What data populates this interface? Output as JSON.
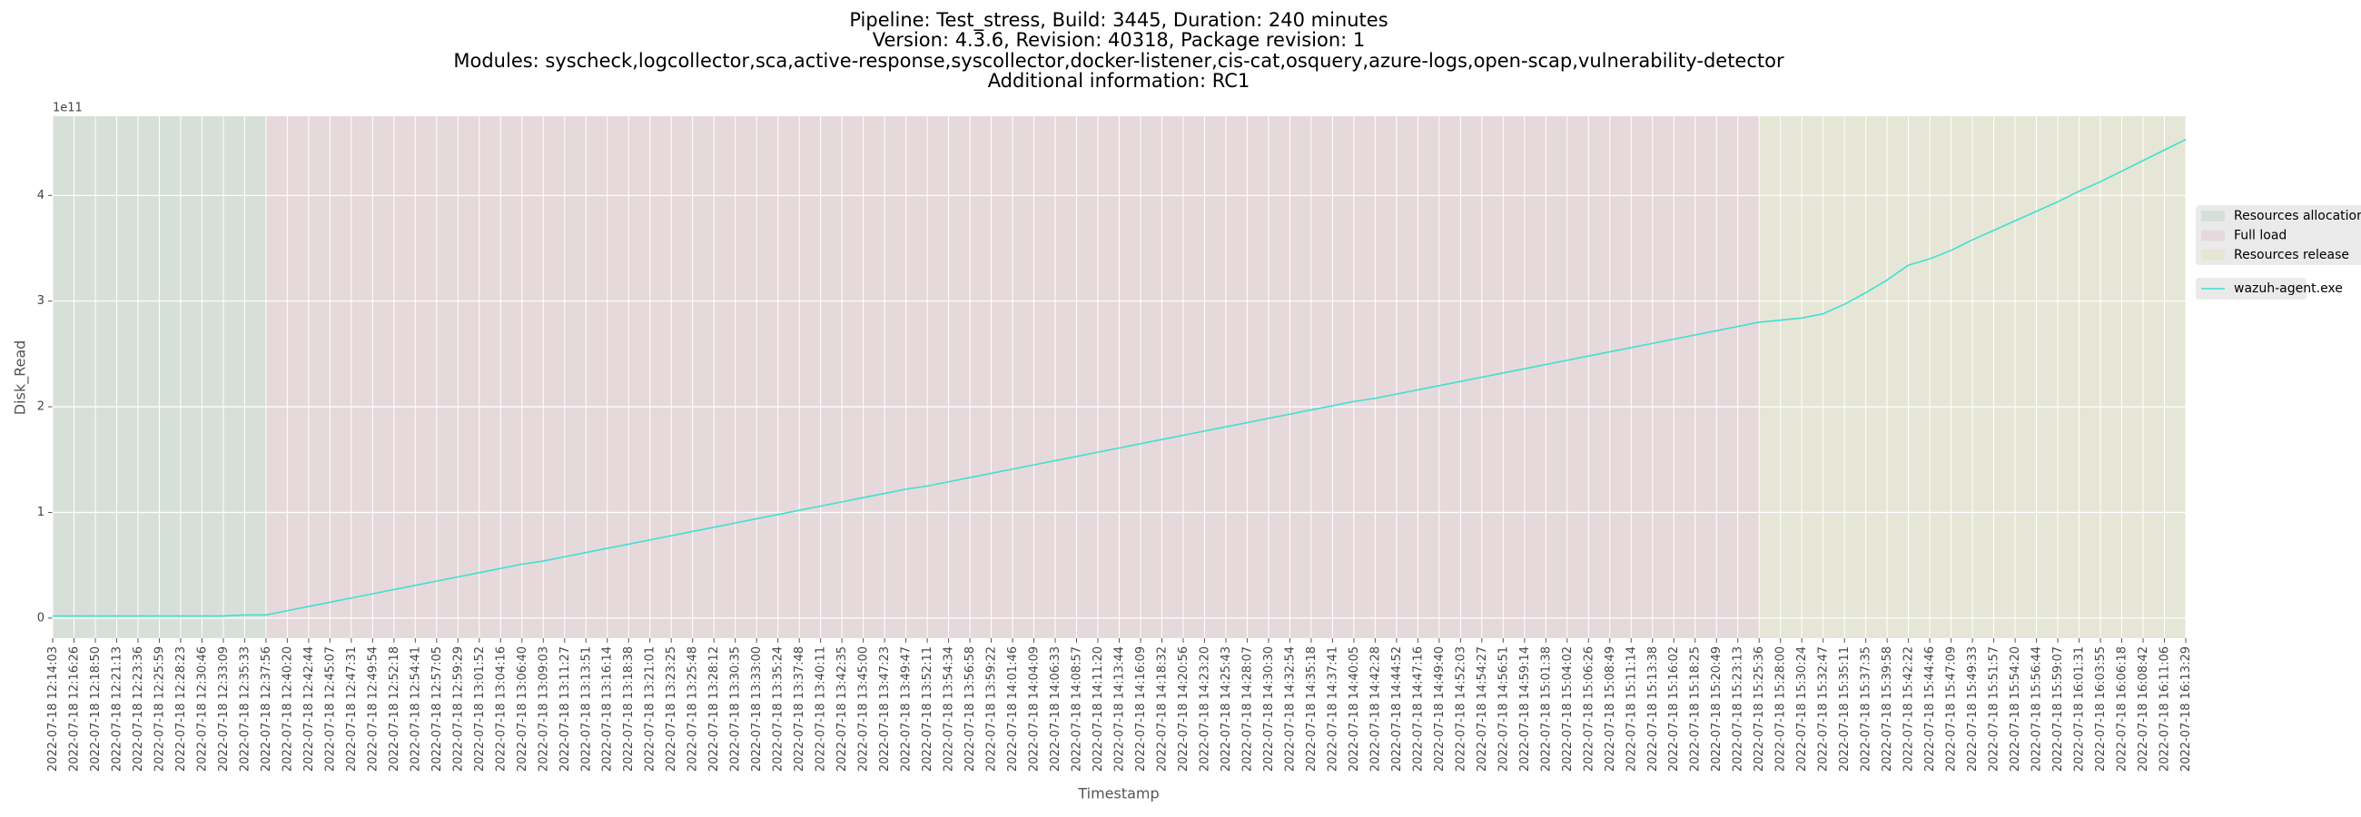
{
  "chart_data": {
    "type": "line",
    "title": [
      "Pipeline: Test_stress, Build: 3445, Duration: 240 minutes",
      "Version: 4.3.6, Revision: 40318, Package revision: 1",
      "Modules: syscheck,logcollector,sca,active-response,syscollector,docker-listener,cis-cat,osquery,azure-logs,open-scap,vulnerability-detector",
      "Additional information: RC1"
    ],
    "x_label": "Timestamp",
    "y_label": "Disk_Read",
    "y_scale_label": "1e11",
    "categories": [
      "2022-07-18 12:14:03",
      "2022-07-18 12:16:26",
      "2022-07-18 12:18:50",
      "2022-07-18 12:21:13",
      "2022-07-18 12:23:36",
      "2022-07-18 12:25:59",
      "2022-07-18 12:28:23",
      "2022-07-18 12:30:46",
      "2022-07-18 12:33:09",
      "2022-07-18 12:35:33",
      "2022-07-18 12:37:56",
      "2022-07-18 12:40:20",
      "2022-07-18 12:42:44",
      "2022-07-18 12:45:07",
      "2022-07-18 12:47:31",
      "2022-07-18 12:49:54",
      "2022-07-18 12:52:18",
      "2022-07-18 12:54:41",
      "2022-07-18 12:57:05",
      "2022-07-18 12:59:29",
      "2022-07-18 13:01:52",
      "2022-07-18 13:04:16",
      "2022-07-18 13:06:40",
      "2022-07-18 13:09:03",
      "2022-07-18 13:11:27",
      "2022-07-18 13:13:51",
      "2022-07-18 13:16:14",
      "2022-07-18 13:18:38",
      "2022-07-18 13:21:01",
      "2022-07-18 13:23:25",
      "2022-07-18 13:25:48",
      "2022-07-18 13:28:12",
      "2022-07-18 13:30:35",
      "2022-07-18 13:33:00",
      "2022-07-18 13:35:24",
      "2022-07-18 13:37:48",
      "2022-07-18 13:40:11",
      "2022-07-18 13:42:35",
      "2022-07-18 13:45:00",
      "2022-07-18 13:47:23",
      "2022-07-18 13:49:47",
      "2022-07-18 13:52:11",
      "2022-07-18 13:54:34",
      "2022-07-18 13:56:58",
      "2022-07-18 13:59:22",
      "2022-07-18 14:01:46",
      "2022-07-18 14:04:09",
      "2022-07-18 14:06:33",
      "2022-07-18 14:08:57",
      "2022-07-18 14:11:20",
      "2022-07-18 14:13:44",
      "2022-07-18 14:16:09",
      "2022-07-18 14:18:32",
      "2022-07-18 14:20:56",
      "2022-07-18 14:23:20",
      "2022-07-18 14:25:43",
      "2022-07-18 14:28:07",
      "2022-07-18 14:30:30",
      "2022-07-18 14:32:54",
      "2022-07-18 14:35:18",
      "2022-07-18 14:37:41",
      "2022-07-18 14:40:05",
      "2022-07-18 14:42:28",
      "2022-07-18 14:44:52",
      "2022-07-18 14:47:16",
      "2022-07-18 14:49:40",
      "2022-07-18 14:52:03",
      "2022-07-18 14:54:27",
      "2022-07-18 14:56:51",
      "2022-07-18 14:59:14",
      "2022-07-18 15:01:38",
      "2022-07-18 15:04:02",
      "2022-07-18 15:06:26",
      "2022-07-18 15:08:49",
      "2022-07-18 15:11:14",
      "2022-07-18 15:13:38",
      "2022-07-18 15:16:02",
      "2022-07-18 15:18:25",
      "2022-07-18 15:20:49",
      "2022-07-18 15:23:13",
      "2022-07-18 15:25:36",
      "2022-07-18 15:28:00",
      "2022-07-18 15:30:24",
      "2022-07-18 15:32:47",
      "2022-07-18 15:35:11",
      "2022-07-18 15:37:35",
      "2022-07-18 15:39:58",
      "2022-07-18 15:42:22",
      "2022-07-18 15:44:46",
      "2022-07-18 15:47:09",
      "2022-07-18 15:49:33",
      "2022-07-18 15:51:57",
      "2022-07-18 15:54:20",
      "2022-07-18 15:56:44",
      "2022-07-18 15:59:07",
      "2022-07-18 16:01:31",
      "2022-07-18 16:03:55",
      "2022-07-18 16:06:18",
      "2022-07-18 16:08:42",
      "2022-07-18 16:11:06",
      "2022-07-18 16:13:29"
    ],
    "series": [
      {
        "name": "wazuh-agent.exe",
        "color": "#40e0d0",
        "values": [
          0.02,
          0.02,
          0.02,
          0.02,
          0.02,
          0.02,
          0.02,
          0.02,
          0.02,
          0.03,
          0.03,
          0.07,
          0.11,
          0.15,
          0.19,
          0.23,
          0.27,
          0.31,
          0.35,
          0.39,
          0.43,
          0.47,
          0.51,
          0.54,
          0.58,
          0.62,
          0.66,
          0.7,
          0.74,
          0.78,
          0.82,
          0.86,
          0.9,
          0.94,
          0.98,
          1.02,
          1.06,
          1.1,
          1.14,
          1.18,
          1.22,
          1.25,
          1.29,
          1.33,
          1.37,
          1.41,
          1.45,
          1.49,
          1.53,
          1.57,
          1.61,
          1.65,
          1.69,
          1.73,
          1.77,
          1.81,
          1.85,
          1.89,
          1.93,
          1.97,
          2.01,
          2.05,
          2.08,
          2.12,
          2.16,
          2.2,
          2.24,
          2.28,
          2.32,
          2.36,
          2.4,
          2.44,
          2.48,
          2.52,
          2.56,
          2.6,
          2.64,
          2.68,
          2.72,
          2.76,
          2.8,
          2.82,
          2.84,
          2.88,
          2.97,
          3.08,
          3.2,
          3.34,
          3.4,
          3.48,
          3.58,
          3.67,
          3.76,
          3.85,
          3.94,
          4.04,
          4.13,
          4.23,
          4.33,
          4.43,
          4.53
        ]
      }
    ],
    "regions": [
      {
        "name": "Resources allocation",
        "start": "2022-07-18 12:14:03",
        "end": "2022-07-18 12:37:56",
        "color": "#d6e0d9"
      },
      {
        "name": "Full load",
        "start": "2022-07-18 12:37:56",
        "end": "2022-07-18 15:25:36",
        "color": "#e6d9db"
      },
      {
        "name": "Resources release",
        "start": "2022-07-18 15:25:36",
        "end": "2022-07-18 16:13:29",
        "color": "#e6e6d7"
      }
    ],
    "ylim": [
      -0.19,
      4.75
    ],
    "yticks": [
      0,
      1,
      2,
      3,
      4
    ],
    "grid": true,
    "legend": "right"
  }
}
